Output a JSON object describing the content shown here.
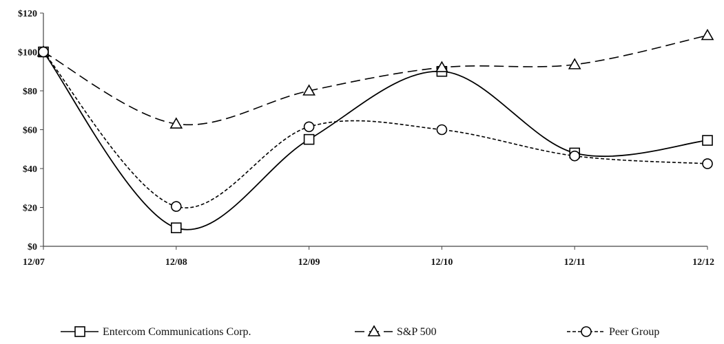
{
  "chart_data": {
    "type": "line",
    "title": "",
    "xlabel": "",
    "ylabel": "",
    "categories": [
      "12/07",
      "12/08",
      "12/09",
      "12/10",
      "12/11",
      "12/12"
    ],
    "ylim": [
      0,
      120
    ],
    "yticks": [
      "$0",
      "$20",
      "$40",
      "$60",
      "$80",
      "$100",
      "$120"
    ],
    "grid": false,
    "legend_position": "bottom",
    "series": [
      {
        "name": "Entercom Communications Corp.",
        "values": [
          100,
          9.5,
          55,
          90,
          48,
          54.5
        ],
        "marker": "square",
        "dash": "solid",
        "color": "#000000"
      },
      {
        "name": "S&P 500",
        "values": [
          100,
          63,
          80,
          92,
          93.5,
          108.5
        ],
        "marker": "triangle",
        "dash": "dashed",
        "color": "#000000"
      },
      {
        "name": "Peer Group",
        "values": [
          100,
          20.5,
          61.5,
          60,
          46.5,
          42.5
        ],
        "marker": "circle",
        "dash": "dotted",
        "color": "#000000"
      }
    ]
  }
}
